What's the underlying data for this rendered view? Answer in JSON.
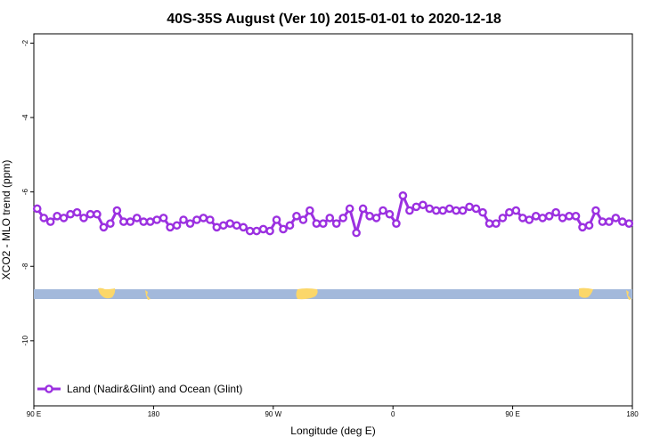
{
  "chart_data": {
    "type": "line",
    "title": "40S-35S August (Ver 10)   2015-01-01 to 2020-12-18",
    "xlabel": "Longitude (deg E)",
    "ylabel": "XCO2 - MLO trend (ppm)",
    "x_ticks": [
      {
        "value": 90,
        "label": "90 E"
      },
      {
        "value": 180,
        "label": "180"
      },
      {
        "value": 270,
        "label": "90 W"
      },
      {
        "value": 360,
        "label": "0"
      },
      {
        "value": 450,
        "label": "90 E"
      },
      {
        "value": 540,
        "label": "180"
      }
    ],
    "y_ticks": [
      {
        "value": -2,
        "label": "-2"
      },
      {
        "value": -4,
        "label": "-4"
      },
      {
        "value": -6,
        "label": "-6"
      },
      {
        "value": -8,
        "label": "-8"
      },
      {
        "value": -10,
        "label": "-10"
      }
    ],
    "xlim": [
      90,
      540
    ],
    "ylim": [
      -11.75,
      -1.75
    ],
    "grid": false,
    "legend": {
      "position": "bottom-left",
      "entries": [
        {
          "label": "Land (Nadir&Glint) and Ocean (Glint)",
          "color": "#9b30e0"
        }
      ]
    },
    "series": [
      {
        "name": "Land (Nadir&Glint) and Ocean (Glint)",
        "color": "#9b30e0",
        "x": [
          92.5,
          97.5,
          102.5,
          107.5,
          112.5,
          117.5,
          122.5,
          127.5,
          132.5,
          137.5,
          142.5,
          147.5,
          152.5,
          157.5,
          162.5,
          167.5,
          172.5,
          177.5,
          182.5,
          187.5,
          192.5,
          197.5,
          202.5,
          207.5,
          212.5,
          217.5,
          222.5,
          227.5,
          232.5,
          237.5,
          242.5,
          247.5,
          252.5,
          257.5,
          262.5,
          267.5,
          272.5,
          277.5,
          282.5,
          287.5,
          292.5,
          297.5,
          302.5,
          307.5,
          312.5,
          317.5,
          322.5,
          327.5,
          332.5,
          337.5,
          342.5,
          347.5,
          352.5,
          357.5,
          362.5,
          367.5,
          372.5,
          377.5,
          382.5,
          387.5,
          392.5,
          397.5,
          402.5,
          407.5,
          412.5,
          417.5,
          422.5,
          427.5,
          432.5,
          437.5,
          442.5,
          447.5,
          452.5,
          457.5,
          462.5,
          467.5,
          472.5,
          477.5,
          482.5,
          487.5,
          492.5,
          497.5,
          502.5,
          507.5,
          512.5,
          517.5,
          522.5,
          527.5,
          532.5,
          537.5
        ],
        "y": [
          -6.45,
          -6.7,
          -6.8,
          -6.65,
          -6.7,
          -6.6,
          -6.55,
          -6.7,
          -6.6,
          -6.6,
          -6.95,
          -6.85,
          -6.5,
          -6.8,
          -6.8,
          -6.7,
          -6.8,
          -6.8,
          -6.75,
          -6.7,
          -6.95,
          -6.9,
          -6.75,
          -6.85,
          -6.75,
          -6.7,
          -6.75,
          -6.95,
          -6.9,
          -6.85,
          -6.9,
          -6.95,
          -7.05,
          -7.05,
          -7.0,
          -7.05,
          -6.75,
          -7.0,
          -6.9,
          -6.65,
          -6.75,
          -6.5,
          -6.85,
          -6.85,
          -6.7,
          -6.85,
          -6.7,
          -6.45,
          -7.1,
          -6.45,
          -6.65,
          -6.7,
          -6.5,
          -6.6,
          -6.85,
          -6.1,
          -6.5,
          -6.4,
          -6.35,
          -6.45,
          -6.5,
          -6.5,
          -6.45,
          -6.5,
          -6.5,
          -6.4,
          -6.45,
          -6.55,
          -6.85,
          -6.85,
          -6.7,
          -6.55,
          -6.5,
          -6.7,
          -6.75,
          -6.65,
          -6.7,
          -6.65,
          -6.55,
          -6.7,
          -6.65,
          -6.65,
          -6.95,
          -6.9,
          -6.5,
          -6.8,
          -6.8,
          -6.7,
          -6.8,
          -6.85
        ]
      }
    ],
    "map_strip": {
      "y_center": -8.8,
      "ocean_color": "#a3b9db",
      "land_color": "#fbd76a"
    }
  }
}
